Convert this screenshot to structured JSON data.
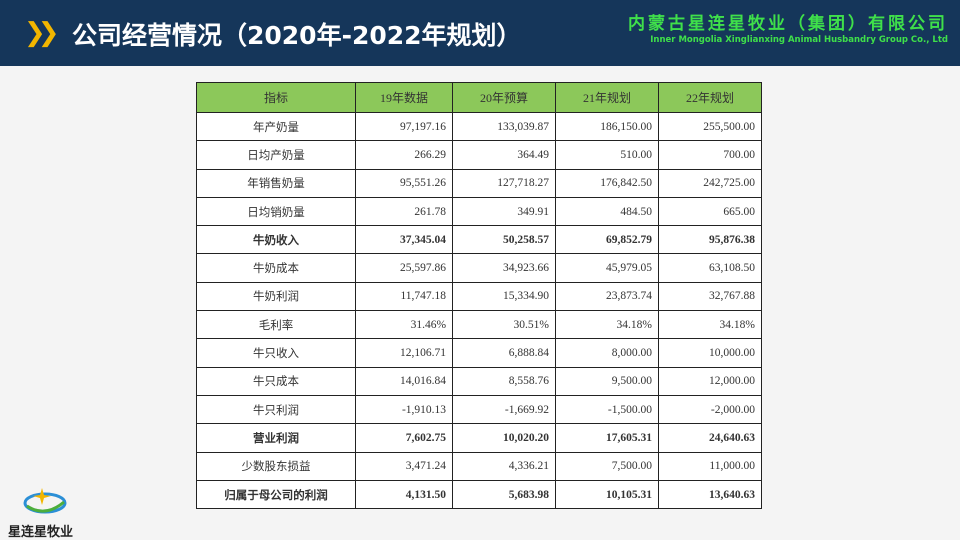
{
  "header": {
    "title": "公司经营情况（2020年-2022年规划）",
    "brand_cn": "内蒙古星连星牧业（集团）有限公司",
    "brand_en": "Inner Mongolia Xinglianxing Animal Husbandry Group Co., Ltd"
  },
  "table": {
    "columns": [
      "指标",
      "19年数据",
      "20年预算",
      "21年规划",
      "22年规划"
    ],
    "rows": [
      {
        "label": "年产奶量",
        "values": [
          "97,197.16",
          "133,039.87",
          "186,150.00",
          "255,500.00"
        ]
      },
      {
        "label": "日均产奶量",
        "values": [
          "266.29",
          "364.49",
          "510.00",
          "700.00"
        ]
      },
      {
        "label": "年销售奶量",
        "values": [
          "95,551.26",
          "127,718.27",
          "176,842.50",
          "242,725.00"
        ]
      },
      {
        "label": "日均销奶量",
        "values": [
          "261.78",
          "349.91",
          "484.50",
          "665.00"
        ]
      },
      {
        "label": "牛奶收入",
        "values": [
          "37,345.04",
          "50,258.57",
          "69,852.79",
          "95,876.38"
        ],
        "bold": true
      },
      {
        "label": "牛奶成本",
        "values": [
          "25,597.86",
          "34,923.66",
          "45,979.05",
          "63,108.50"
        ]
      },
      {
        "label": "牛奶利润",
        "values": [
          "11,747.18",
          "15,334.90",
          "23,873.74",
          "32,767.88"
        ]
      },
      {
        "label": "毛利率",
        "values": [
          "31.46%",
          "30.51%",
          "34.18%",
          "34.18%"
        ]
      },
      {
        "label": "牛只收入",
        "values": [
          "12,106.71",
          "6,888.84",
          "8,000.00",
          "10,000.00"
        ]
      },
      {
        "label": "牛只成本",
        "values": [
          "14,016.84",
          "8,558.76",
          "9,500.00",
          "12,000.00"
        ]
      },
      {
        "label": "牛只利润",
        "values": [
          "-1,910.13",
          "-1,669.92",
          "-1,500.00",
          "-2,000.00"
        ]
      },
      {
        "label": "营业利润",
        "values": [
          "7,602.75",
          "10,020.20",
          "17,605.31",
          "24,640.63"
        ],
        "bold": true
      },
      {
        "label": "少数股东损益",
        "values": [
          "3,471.24",
          "4,336.21",
          "7,500.00",
          "11,000.00"
        ]
      },
      {
        "label": "归属于母公司的利润",
        "values": [
          "4,131.50",
          "5,683.98",
          "10,105.31",
          "13,640.63"
        ],
        "bold": true
      }
    ]
  },
  "logo": {
    "text": "星连星牧业"
  },
  "colors": {
    "header_bg": "#15365a",
    "accent": "#f2b600",
    "table_header": "#8cc85a",
    "brand": "#3fe04a"
  }
}
